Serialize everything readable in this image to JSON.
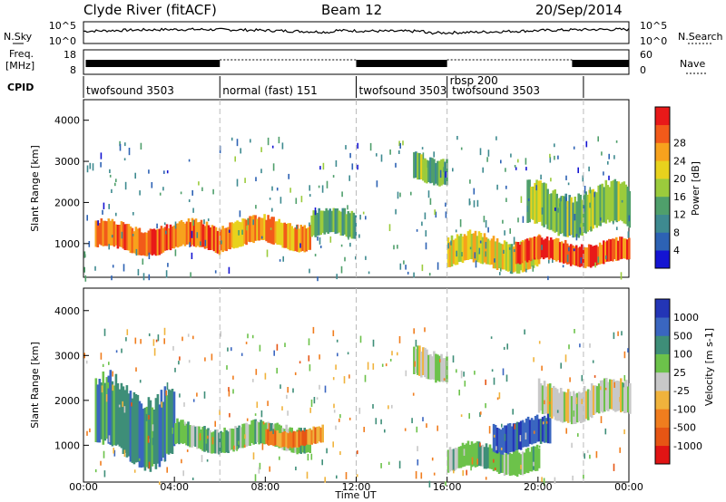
{
  "header": {
    "station": "Clyde River (fitACF)",
    "beam": "Beam 12",
    "date": "20/Sep/2014"
  },
  "noise_panel": {
    "left_label": "N.Sky",
    "right_label": "N.Search",
    "ytick_top": "10^5",
    "ytick_bottom": "10^0"
  },
  "freq_panel": {
    "left_label_1": "Freq.",
    "left_label_2": "[MHz]",
    "right_label": "Nave",
    "left_tick_top": "18",
    "left_tick_bottom": "8",
    "right_tick_top": "60",
    "right_tick_bottom": "0"
  },
  "cpid_panel": {
    "label": "CPID",
    "segments": [
      {
        "name": "twofsound 3503",
        "start": 0,
        "end": 6
      },
      {
        "name": "normal (fast) 151",
        "start": 6,
        "end": 12
      },
      {
        "name": "twofsound 3503",
        "start": 12,
        "end": 16
      },
      {
        "name": "rbsp 200",
        "start": 16,
        "end": 16.1
      },
      {
        "name": "twofsound 3503",
        "start": 16.1,
        "end": 22
      }
    ]
  },
  "power_panel": {
    "ylabel": "Slant Range [km]",
    "yticks": [
      "1000",
      "2000",
      "3000",
      "4000"
    ],
    "colorbar_label": "Power [dB]",
    "colorbar_ticks": [
      "4",
      "8",
      "12",
      "16",
      "20",
      "24",
      "28"
    ]
  },
  "velocity_panel": {
    "ylabel": "Slant Range [km]",
    "yticks": [
      "1000",
      "2000",
      "3000",
      "4000"
    ],
    "colorbar_label": "Velocity [m s-1]",
    "colorbar_ticks": [
      "1000",
      "500",
      "100",
      "25",
      "-25",
      "-100",
      "-500",
      "-1000"
    ]
  },
  "x_axis": {
    "label": "Time UT",
    "ticks": [
      "00:00",
      "04:00",
      "08:00",
      "12:00",
      "16:00",
      "20:00",
      "00:00"
    ]
  },
  "colors": {
    "power_scale": [
      "#1414d2",
      "#2d62b4",
      "#3e8a90",
      "#4f9f6b",
      "#9bcb3c",
      "#e8d21d",
      "#f7a21d",
      "#f25a1a",
      "#e81919"
    ],
    "velocity_scale": [
      "#2335b6",
      "#3a66c0",
      "#3e8e78",
      "#6cc24a",
      "#c8c8c8",
      "#f0b33c",
      "#f07d1e",
      "#e65514",
      "#e01414"
    ],
    "gray_mask": "#c9c9c9"
  },
  "chart_data": {
    "type": "heatmap",
    "x_range_hours": [
      0,
      24
    ],
    "range_km": [
      180,
      4500
    ],
    "power_db_range": [
      0,
      30
    ],
    "velocity_range": [
      -1000,
      1000
    ],
    "cpid_boundaries_hours": [
      6,
      12,
      16,
      22
    ],
    "power_backscatter_bands": [
      {
        "t_start": 0.5,
        "t_end": 6.0,
        "range_km": [
          800,
          1500
        ],
        "power_db": 26
      },
      {
        "t_start": 6.0,
        "t_end": 10.0,
        "range_km": [
          900,
          1600
        ],
        "power_db": 22
      },
      {
        "t_start": 10.0,
        "t_end": 12.0,
        "range_km": [
          1100,
          1800
        ],
        "power_db": 12
      },
      {
        "t_start": 14.5,
        "t_end": 16.0,
        "range_km": [
          2500,
          3200
        ],
        "power_db": 12
      },
      {
        "t_start": 16.0,
        "t_end": 20.0,
        "range_km": [
          400,
          1200
        ],
        "power_db": 18
      },
      {
        "t_start": 19.0,
        "t_end": 24.0,
        "range_km": [
          500,
          1100
        ],
        "power_db": 28
      },
      {
        "t_start": 19.5,
        "t_end": 24.0,
        "range_km": [
          1300,
          2400
        ],
        "power_db": 14
      }
    ],
    "velocity_backscatter_bands": [
      {
        "t_start": 0.5,
        "t_end": 4.0,
        "range_km": [
          700,
          2400
        ],
        "velocity": 300
      },
      {
        "t_start": 4.0,
        "t_end": 10.0,
        "range_km": [
          900,
          1500
        ],
        "velocity": 80
      },
      {
        "t_start": 8.0,
        "t_end": 10.5,
        "range_km": [
          1000,
          1400
        ],
        "velocity": -250
      },
      {
        "t_start": 14.5,
        "t_end": 16.0,
        "range_km": [
          2500,
          3200
        ],
        "velocity": 0
      },
      {
        "t_start": 16.0,
        "t_end": 20.0,
        "range_km": [
          400,
          1000
        ],
        "velocity": 80
      },
      {
        "t_start": 18.0,
        "t_end": 20.5,
        "range_km": [
          900,
          1600
        ],
        "velocity": 600
      },
      {
        "t_start": 20.0,
        "t_end": 24.0,
        "range_km": [
          1600,
          2400
        ],
        "velocity": 0
      }
    ]
  }
}
